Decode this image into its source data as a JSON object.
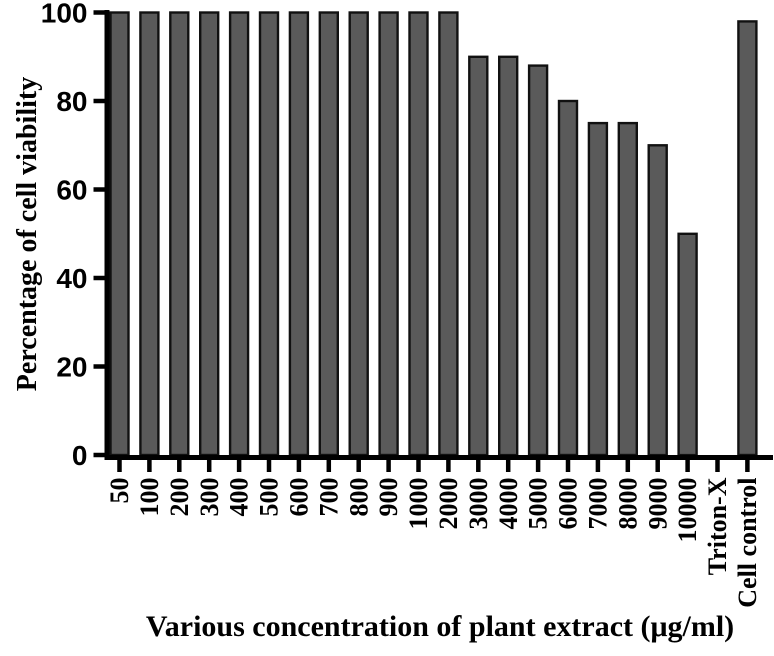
{
  "chart_data": {
    "type": "bar",
    "title": "",
    "xlabel": "Various concentration of plant extract (μg/ml)",
    "ylabel": "Percentage of cell viability",
    "categories": [
      "50",
      "100",
      "200",
      "300",
      "400",
      "500",
      "600",
      "700",
      "800",
      "900",
      "1000",
      "2000",
      "3000",
      "4000",
      "5000",
      "6000",
      "7000",
      "8000",
      "9000",
      "10000",
      "Triton-X",
      "Cell control"
    ],
    "values": [
      100,
      100,
      100,
      100,
      100,
      100,
      100,
      100,
      100,
      100,
      100,
      100,
      90,
      90,
      88,
      80,
      75,
      75,
      70,
      50,
      0,
      98
    ],
    "ylim": [
      0,
      100
    ],
    "yticks": [
      0,
      20,
      40,
      60,
      80,
      100
    ],
    "grid": false,
    "legend": null,
    "bar_fill_color": "#5a5a5a",
    "bar_border_color": "#111111",
    "axis_color": "#000000",
    "background_color": "#ffffff"
  }
}
